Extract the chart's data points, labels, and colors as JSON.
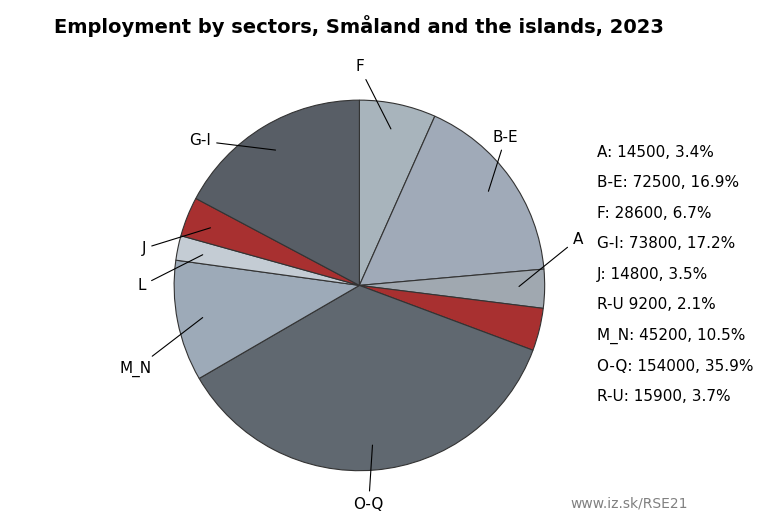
{
  "title": "Employment by sectors, Småland and the islands, 2023",
  "watermark": "www.iz.sk/RSE21",
  "sectors": [
    {
      "label": "A",
      "value": 14500,
      "pct": 3.4,
      "color": "#a0a8b0"
    },
    {
      "label": "B-E",
      "value": 72500,
      "pct": 16.9,
      "color": "#a0a8b0"
    },
    {
      "label": "F",
      "value": 28600,
      "pct": 6.7,
      "color": "#a0a8b0"
    },
    {
      "label": "G-I",
      "value": 73800,
      "pct": 17.2,
      "color": "#606870"
    },
    {
      "label": "J",
      "value": 14800,
      "pct": 3.5,
      "color": "#a83030"
    },
    {
      "label": "L",
      "value": 9200,
      "pct": 2.1,
      "color": "#c0c8d0"
    },
    {
      "label": "M_N",
      "value": 45200,
      "pct": 10.5,
      "color": "#a0aab8"
    },
    {
      "label": "O-Q",
      "value": 154000,
      "pct": 35.9,
      "color": "#606870"
    },
    {
      "label": "R-U",
      "value": 15900,
      "pct": 3.7,
      "color": "#a83030"
    }
  ],
  "legend_order": [
    "A",
    "B-E",
    "F",
    "G-I",
    "J",
    "L",
    "M_N",
    "O-Q",
    "R-U"
  ],
  "label_fontsize": 11,
  "title_fontsize": 14,
  "legend_fontsize": 11,
  "watermark_fontsize": 10
}
